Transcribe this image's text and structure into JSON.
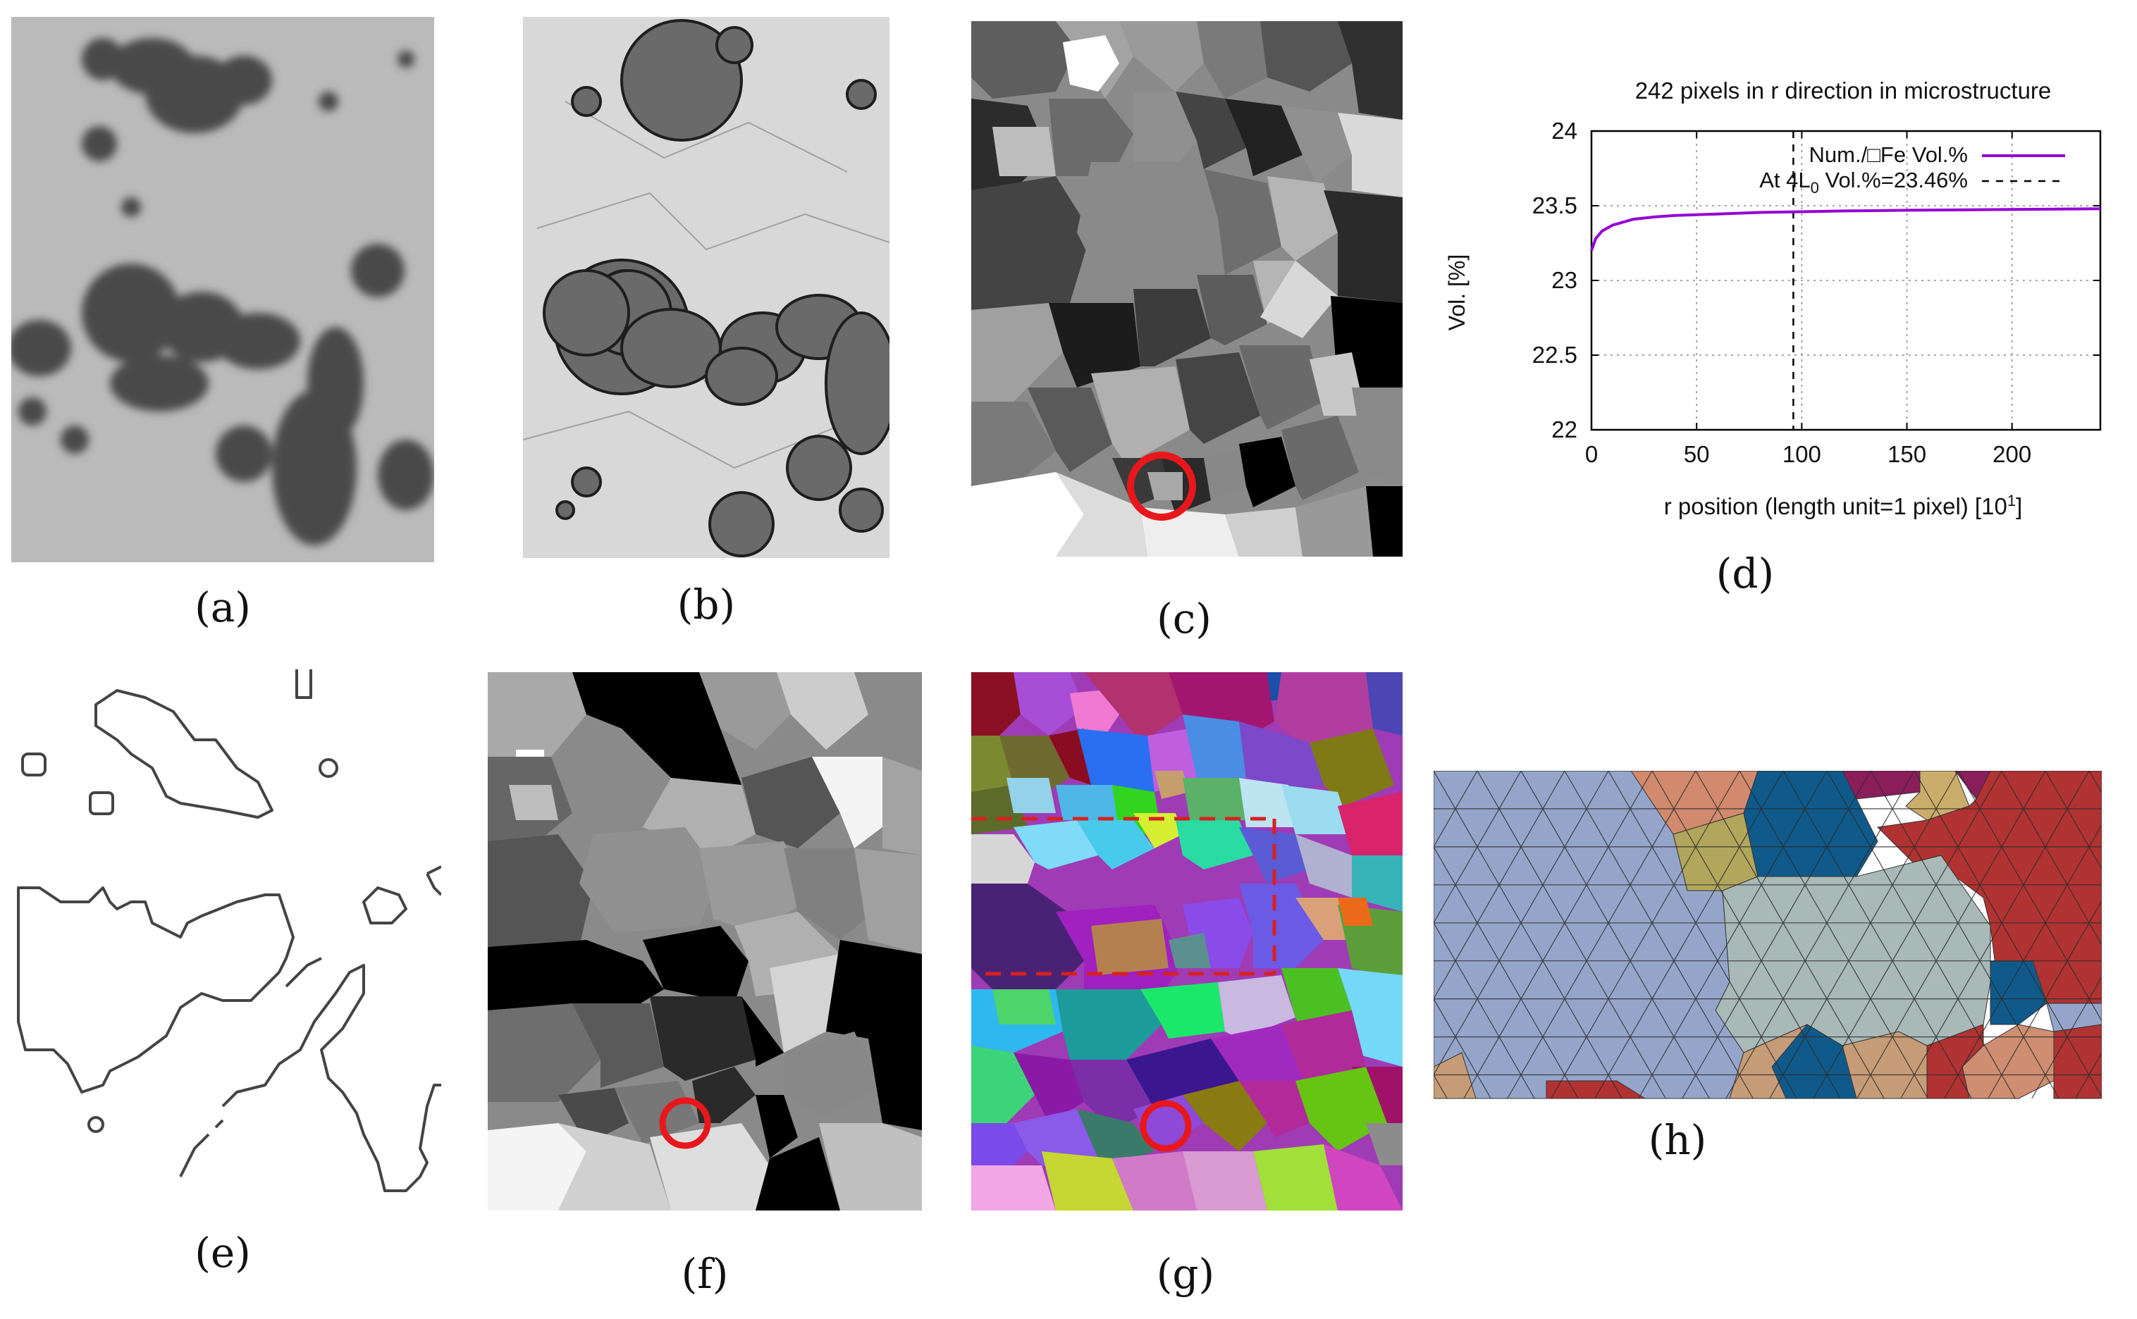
{
  "captions": {
    "a": "(a)",
    "b": "(b)",
    "c": "(c)",
    "d": "(d)",
    "e": "(e)",
    "f": "(f)",
    "g": "(g)",
    "h": "(h)"
  },
  "colors": {
    "highlight": "#e8171c",
    "dashed_box": "#d9201d",
    "curve": "#9400d3"
  },
  "chart_data": {
    "type": "line",
    "title": "242 pixels in r direction in microstructure",
    "xlabel": "r position (length unit=1 pixel) [10",
    "xlabel_sup": "1",
    "xlabel_end": "]",
    "ylabel": "Vol. [%]",
    "xlim": [
      0,
      242
    ],
    "ylim": [
      22,
      24
    ],
    "x_ticks": [
      "0",
      "50",
      "100",
      "150",
      "200"
    ],
    "x_tick_values": [
      0,
      50,
      100,
      150,
      200
    ],
    "y_ticks": [
      "22",
      "22.5",
      "23",
      "23.5",
      "24"
    ],
    "y_tick_values": [
      22,
      22.5,
      23,
      23.5,
      24
    ],
    "grid": true,
    "legend_position": "top-right",
    "legend": {
      "series_label": "Num./□Fe Vol.%",
      "line_label_prefix": "At 4L",
      "line_label_sub": "0",
      "line_label_suffix": " Vol.%=23.46%"
    },
    "series": [
      {
        "name": "Num./□Fe Vol.%",
        "x": [
          0,
          2,
          5,
          10,
          15,
          20,
          30,
          40,
          50,
          60,
          80,
          100,
          120,
          150,
          200,
          242
        ],
        "y": [
          23.2,
          23.28,
          23.33,
          23.37,
          23.39,
          23.41,
          23.425,
          23.435,
          23.44,
          23.445,
          23.455,
          23.46,
          23.465,
          23.47,
          23.475,
          23.48
        ]
      }
    ],
    "vertical_line": {
      "x": 96,
      "label": "At 4L0 Vol.%=23.46%"
    }
  }
}
